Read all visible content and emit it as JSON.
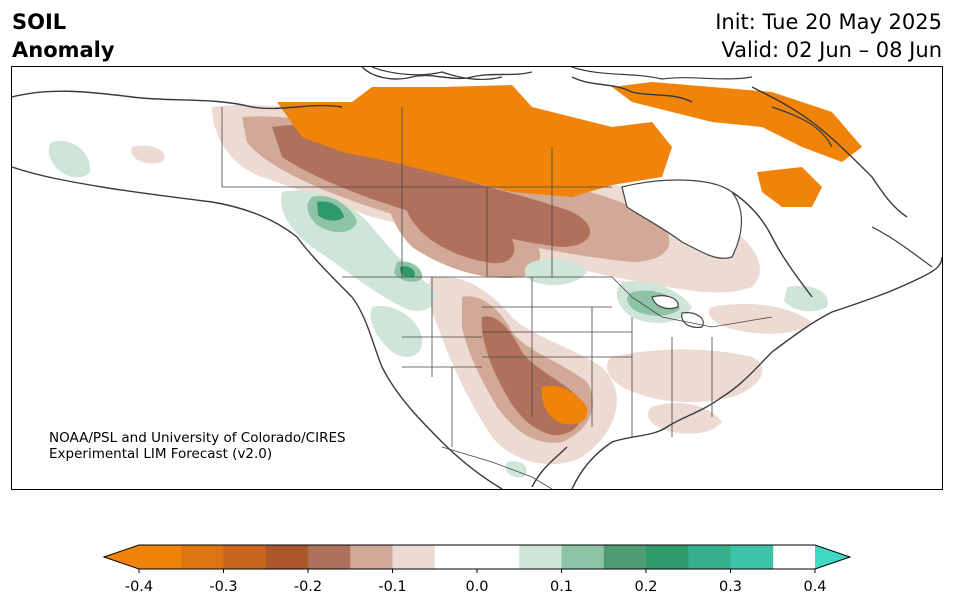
{
  "header": {
    "title_line1": "SOIL",
    "title_line2": "Anomaly",
    "init_text": "Init: Tue 20 May 2025",
    "valid_text": "Valid: 02 Jun – 08 Jun"
  },
  "credit": {
    "line1": "NOAA/PSL and University of Colorado/CIRES",
    "line2": "Experimental LIM Forecast (v2.0)"
  },
  "colorbar": {
    "min": -0.4,
    "max": 0.4,
    "ticks": [
      "-0.4",
      "-0.3",
      "-0.2",
      "-0.1",
      "0.0",
      "0.1",
      "0.2",
      "0.3",
      "0.4"
    ],
    "extend_low_color": "#f0830a",
    "extend_high_color": "#3dd9c4",
    "bins": [
      {
        "from": -0.4,
        "to": -0.35,
        "color": "#f0830a"
      },
      {
        "from": -0.35,
        "to": -0.3,
        "color": "#df7413"
      },
      {
        "from": -0.3,
        "to": -0.25,
        "color": "#c8651d"
      },
      {
        "from": -0.25,
        "to": -0.2,
        "color": "#ad5627"
      },
      {
        "from": -0.2,
        "to": -0.15,
        "color": "#b0715c"
      },
      {
        "from": -0.15,
        "to": -0.1,
        "color": "#d2a896"
      },
      {
        "from": -0.1,
        "to": -0.05,
        "color": "#ecdad3"
      },
      {
        "from": -0.05,
        "to": 0.05,
        "color": "#ffffff"
      },
      {
        "from": 0.05,
        "to": 0.1,
        "color": "#cfe5d9"
      },
      {
        "from": 0.1,
        "to": 0.15,
        "color": "#8fc3a6"
      },
      {
        "from": 0.15,
        "to": 0.2,
        "color": "#4e9c72"
      },
      {
        "from": 0.2,
        "to": 0.25,
        "color": "#2e9a6a"
      },
      {
        "from": 0.25,
        "to": 0.3,
        "color": "#36b08c"
      },
      {
        "from": 0.3,
        "to": 0.35,
        "color": "#3cc4a8"
      }
    ]
  }
}
